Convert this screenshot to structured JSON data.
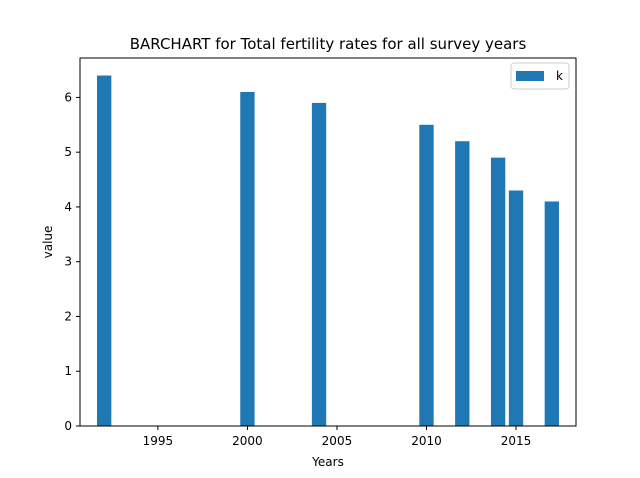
{
  "chart_data": {
    "type": "bar",
    "title": "BARCHART for Total fertility rates for all survey years",
    "xlabel": "Years",
    "ylabel": "value",
    "xlim": [
      1990.65,
      2018.35
    ],
    "ylim": [
      0,
      6.72
    ],
    "xticks": [
      1995,
      2000,
      2005,
      2010,
      2015
    ],
    "yticks": [
      0,
      1,
      2,
      3,
      4,
      5,
      6
    ],
    "bar_width": 0.8,
    "grid": false,
    "legend_position": "top-right",
    "series": [
      {
        "name": "k",
        "color": "#1f77b4",
        "x": [
          1992,
          2000,
          2004,
          2010,
          2012,
          2014,
          2015,
          2017
        ],
        "values": [
          6.4,
          6.1,
          5.9,
          5.5,
          5.2,
          4.9,
          4.3,
          4.1
        ]
      }
    ]
  }
}
